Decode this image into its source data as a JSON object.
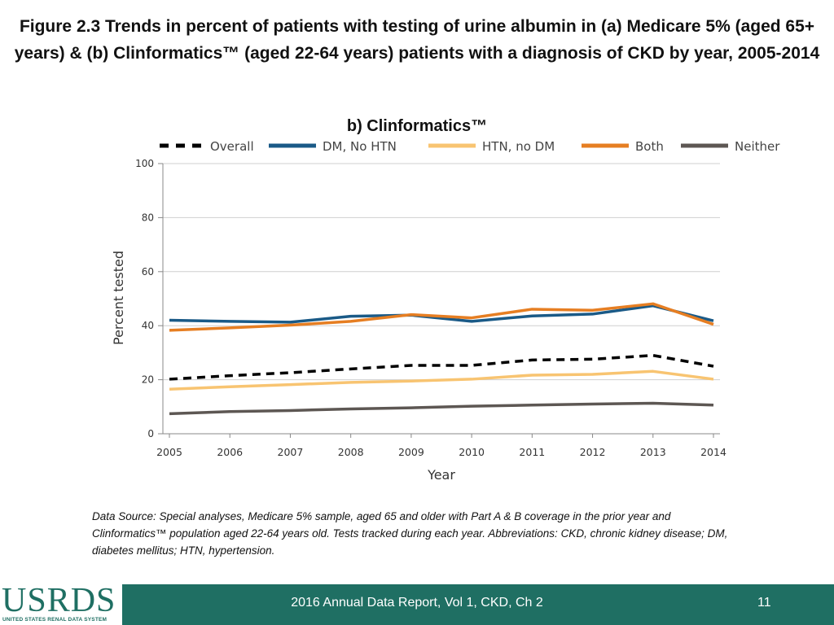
{
  "figure": {
    "title": "Figure 2.3  Trends in percent of patients with testing of urine albumin in (a) Medicare 5% (aged 65+ years) & (b) Clinformatics™ (aged 22-64 years) patients with a diagnosis of CKD by year, 2005-2014",
    "panel_title": "b)  Clinformatics™"
  },
  "chart_data": {
    "type": "line",
    "title": "b)  Clinformatics™",
    "xlabel": "Year",
    "ylabel": "Percent tested",
    "x": [
      "2005",
      "2006",
      "2007",
      "2008",
      "2009",
      "2010",
      "2011",
      "2012",
      "2013",
      "2014"
    ],
    "ylim": [
      0,
      100
    ],
    "yticks": [
      0,
      20,
      40,
      60,
      80,
      100
    ],
    "grid": true,
    "legend_position": "top",
    "series": [
      {
        "name": "Overall",
        "color": "#000000",
        "dashed": true,
        "values": [
          20.2,
          21.5,
          22.6,
          24.0,
          25.3,
          25.3,
          27.3,
          27.6,
          29.0,
          25.0
        ]
      },
      {
        "name": "DM, No HTN",
        "color": "#1a5a87",
        "dashed": false,
        "values": [
          42.0,
          41.6,
          41.3,
          43.5,
          43.9,
          41.6,
          43.6,
          44.3,
          47.4,
          41.8
        ]
      },
      {
        "name": "HTN, no DM",
        "color": "#f8c471",
        "dashed": false,
        "values": [
          16.5,
          17.4,
          18.2,
          19.0,
          19.5,
          20.2,
          21.7,
          22.0,
          23.1,
          20.2
        ]
      },
      {
        "name": "Both",
        "color": "#e67e22",
        "dashed": false,
        "values": [
          38.3,
          39.2,
          40.2,
          41.6,
          44.1,
          42.9,
          46.1,
          45.7,
          48.1,
          40.5
        ]
      },
      {
        "name": "Neither",
        "color": "#5d5753",
        "dashed": false,
        "values": [
          7.4,
          8.2,
          8.6,
          9.2,
          9.6,
          10.2,
          10.6,
          11.0,
          11.3,
          10.6
        ]
      }
    ]
  },
  "source_note": "Data Source: Special analyses, Medicare 5% sample, aged 65 and older with Part A & B coverage in the prior year and Clinformatics™ population aged 22-64 years old. Tests tracked during each year. Abbreviations: CKD, chronic kidney disease; DM, diabetes mellitus; HTN, hypertension.",
  "footer": {
    "logo_text": "USRDS",
    "logo_tagline": "UNITED STATES RENAL DATA SYSTEM",
    "report": "2016 Annual Data Report, Vol 1, CKD, Ch 2",
    "page_number": "11"
  }
}
